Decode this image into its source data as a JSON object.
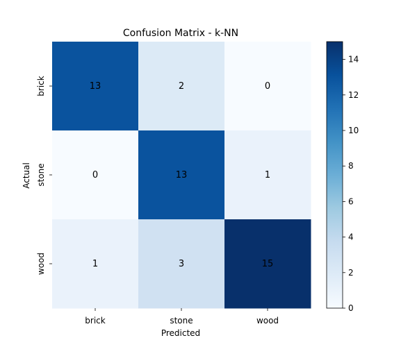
{
  "chart_data": {
    "type": "heatmap",
    "title": "Confusion Matrix - k-NN",
    "xlabel": "Predicted",
    "ylabel": "Actual",
    "x_categories": [
      "brick",
      "stone",
      "wood"
    ],
    "y_categories": [
      "brick",
      "stone",
      "wood"
    ],
    "values": [
      [
        13,
        2,
        0
      ],
      [
        0,
        13,
        1
      ],
      [
        1,
        3,
        15
      ]
    ],
    "colorbar": {
      "min": 0,
      "max": 15,
      "ticks": [
        0,
        2,
        4,
        6,
        8,
        10,
        12,
        14
      ],
      "colormap": "Blues"
    },
    "annotations": true
  }
}
